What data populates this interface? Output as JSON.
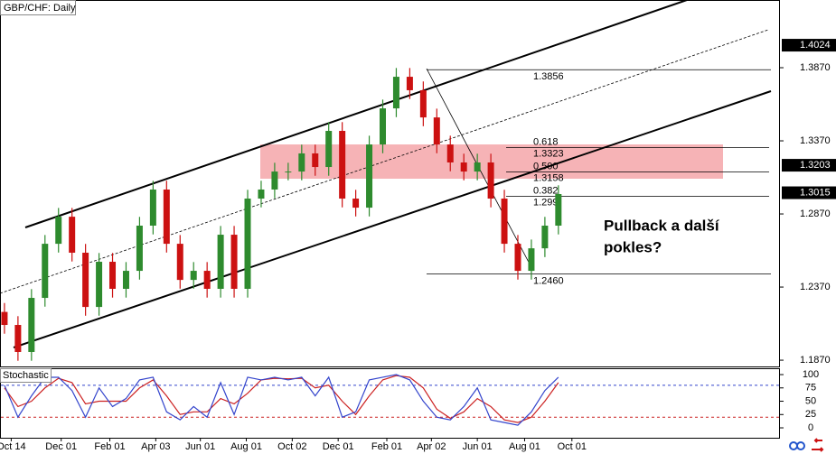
{
  "chart_data": {
    "type": "candlestick",
    "title": "GBP/CHF: Daily",
    "up_color": "#2e8b2e",
    "down_color": "#cc1111",
    "candles": [
      [
        1.22,
        1.2261,
        1.2051,
        1.2111
      ],
      [
        1.2111,
        1.2171,
        1.1866,
        1.1926
      ],
      [
        1.1926,
        1.2356,
        1.1866,
        1.2296
      ],
      [
        1.2296,
        1.2726,
        1.2236,
        1.2666
      ],
      [
        1.2666,
        1.2911,
        1.2606,
        1.2851
      ],
      [
        1.2851,
        1.2911,
        1.2545,
        1.2605
      ],
      [
        1.2605,
        1.2665,
        1.2174,
        1.2234
      ],
      [
        1.2234,
        1.2603,
        1.2174,
        1.2543
      ],
      [
        1.2543,
        1.2603,
        1.2298,
        1.2358
      ],
      [
        1.2358,
        1.2541,
        1.2298,
        1.2481
      ],
      [
        1.2481,
        1.285,
        1.2421,
        1.279
      ],
      [
        1.279,
        1.3097,
        1.273,
        1.3037
      ],
      [
        1.3037,
        1.3097,
        1.2606,
        1.2666
      ],
      [
        1.2666,
        1.2726,
        1.2359,
        1.2419
      ],
      [
        1.2419,
        1.2541,
        1.2359,
        1.2481
      ],
      [
        1.2481,
        1.2541,
        1.2298,
        1.2358
      ],
      [
        1.2358,
        1.2788,
        1.2298,
        1.2728
      ],
      [
        1.2728,
        1.2788,
        1.2298,
        1.2358
      ],
      [
        1.2358,
        1.3035,
        1.2298,
        1.2975
      ],
      [
        1.2975,
        1.3097,
        1.2915,
        1.3037
      ],
      [
        1.3037,
        1.322,
        1.2977,
        1.316
      ],
      [
        1.316,
        1.322,
        1.31,
        1.316
      ],
      [
        1.316,
        1.3344,
        1.31,
        1.3284
      ],
      [
        1.3284,
        1.3344,
        1.3131,
        1.3191
      ],
      [
        1.3191,
        1.3498,
        1.3131,
        1.3438
      ],
      [
        1.3438,
        1.3498,
        1.2915,
        1.2975
      ],
      [
        1.2975,
        1.3035,
        1.2853,
        1.2913
      ],
      [
        1.2913,
        1.3405,
        1.2853,
        1.3345
      ],
      [
        1.3345,
        1.3652,
        1.3285,
        1.3592
      ],
      [
        1.3592,
        1.3868,
        1.3532,
        1.3808
      ],
      [
        1.3808,
        1.3868,
        1.3656,
        1.3716
      ],
      [
        1.3716,
        1.3776,
        1.347,
        1.353
      ],
      [
        1.353,
        1.359,
        1.3285,
        1.3345
      ],
      [
        1.3345,
        1.3405,
        1.3162,
        1.3222
      ],
      [
        1.3222,
        1.3282,
        1.31,
        1.316
      ],
      [
        1.316,
        1.3282,
        1.31,
        1.3222
      ],
      [
        1.3222,
        1.3282,
        1.2915,
        1.2975
      ],
      [
        1.2975,
        1.3035,
        1.2606,
        1.2666
      ],
      [
        1.2666,
        1.2726,
        1.2421,
        1.2481
      ],
      [
        1.2481,
        1.2695,
        1.2421,
        1.2635
      ],
      [
        1.2635,
        1.285,
        1.2575,
        1.279
      ],
      [
        1.279,
        1.3066,
        1.273,
        1.3006
      ]
    ],
    "xlim": [
      -0.33,
      57.4
    ],
    "xticks": [
      {
        "value": 0.5,
        "label": "Oct 14"
      },
      {
        "value": 4.2,
        "label": "Dec 01"
      },
      {
        "value": 7.8,
        "label": "Feb 01"
      },
      {
        "value": 11.2,
        "label": "Apr 03"
      },
      {
        "value": 14.5,
        "label": "Jun 01"
      },
      {
        "value": 17.9,
        "label": "Aug 01"
      },
      {
        "value": 21.3,
        "label": "Oct 02"
      },
      {
        "value": 24.7,
        "label": "Dec 01"
      },
      {
        "value": 28.3,
        "label": "Feb 01"
      },
      {
        "value": 31.6,
        "label": "Apr 02"
      },
      {
        "value": 35.0,
        "label": "Jun 01"
      },
      {
        "value": 38.5,
        "label": "Aug 01"
      },
      {
        "value": 42.0,
        "label": "Oct 01"
      }
    ],
    "ylim": [
      1.1821,
      1.4333
    ],
    "yticks": [
      {
        "value": 1.387,
        "label": "1.3870"
      },
      {
        "value": 1.337,
        "label": "1.3370"
      },
      {
        "value": 1.287,
        "label": "1.2870"
      },
      {
        "value": 1.237,
        "label": "1.2370"
      },
      {
        "value": 1.187,
        "label": "1.1870"
      }
    ],
    "price_markers": [
      {
        "value": 1.4024,
        "label": "1.4024"
      },
      {
        "value": 1.3203,
        "label": "1.3203"
      },
      {
        "value": 1.3015,
        "label": "1.3015"
      }
    ],
    "levels": [
      {
        "value": 1.3856,
        "label": "1.3856"
      },
      {
        "value": 1.246,
        "label": "1.2460"
      }
    ],
    "fib_levels": [
      {
        "value": 1.3323,
        "label": "1.3323",
        "ratio": "0.618"
      },
      {
        "value": 1.3158,
        "label": "1.3158",
        "ratio": "0.500"
      },
      {
        "value": 1.299,
        "label": "1.299",
        "ratio": "0.382"
      }
    ],
    "annotation": [
      "Pullback a další",
      "pokles?"
    ],
    "indicator": {
      "title": "Stochastic",
      "ylim": [
        -18.6,
        111.9
      ],
      "yticks": [
        100,
        75,
        50,
        25,
        0
      ],
      "levels": [
        {
          "value": 80,
          "color": "#3344cc"
        },
        {
          "value": 20,
          "color": "#cc2222"
        }
      ],
      "k": {
        "color": "#3344cc",
        "values": [
          80,
          20,
          60,
          95,
          95,
          70,
          20,
          75,
          40,
          55,
          90,
          95,
          30,
          15,
          40,
          20,
          85,
          25,
          95,
          90,
          95,
          90,
          95,
          60,
          95,
          20,
          30,
          90,
          95,
          100,
          90,
          50,
          20,
          15,
          40,
          75,
          15,
          10,
          5,
          30,
          70,
          95
        ]
      },
      "d": {
        "color": "#cc2222",
        "values": [
          75,
          40,
          50,
          75,
          93,
          85,
          45,
          50,
          50,
          50,
          75,
          90,
          60,
          25,
          30,
          30,
          55,
          45,
          65,
          90,
          93,
          92,
          93,
          75,
          80,
          50,
          25,
          60,
          90,
          98,
          95,
          75,
          35,
          18,
          30,
          55,
          40,
          15,
          10,
          20,
          50,
          85
        ]
      }
    }
  }
}
